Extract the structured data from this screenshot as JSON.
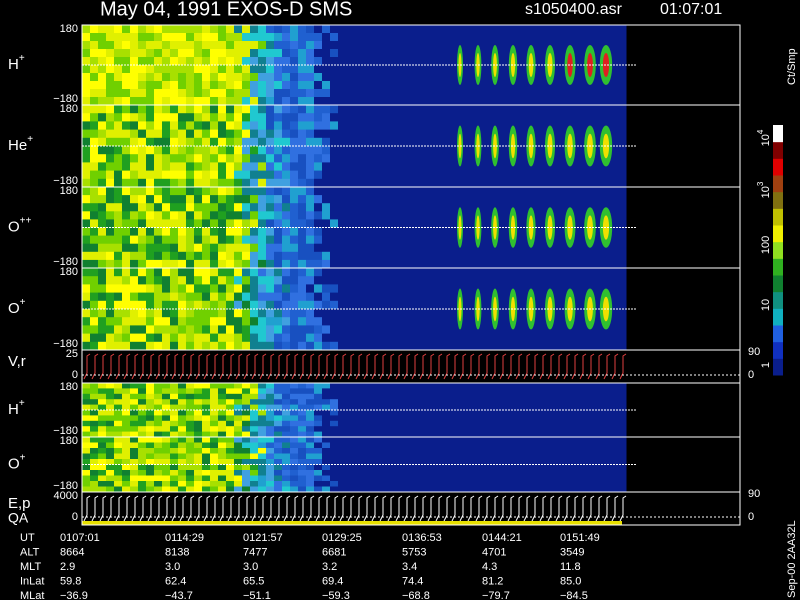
{
  "header": {
    "title": "May 04, 1991   EXOS-D SMS",
    "file": "s1050400.asr",
    "time": "01:07:01"
  },
  "panels": [
    {
      "label": "H",
      "sup": "+",
      "top": "180",
      "bottom": "−180"
    },
    {
      "label": "He",
      "sup": "+",
      "top": "180",
      "bottom": "−180"
    },
    {
      "label": "O",
      "sup": "++",
      "top": "180",
      "bottom": "−180"
    },
    {
      "label": "O",
      "sup": "+",
      "top": "180",
      "bottom": "−180"
    },
    {
      "label": "V,r",
      "top": "25",
      "bottom": "0",
      "right_top": "90",
      "right_bottom": "0"
    },
    {
      "label": "H",
      "sup": "+",
      "top": "180",
      "bottom": "−180"
    },
    {
      "label": "O",
      "sup": "+",
      "top": "180",
      "bottom": "−180"
    },
    {
      "label": "E,p",
      "sub": "QA",
      "top": "4000",
      "bottom": "0",
      "right_top": "90",
      "right_bottom": "0"
    }
  ],
  "colorbar": {
    "unit": "Ct/Smp",
    "ticks": [
      {
        "base": "10",
        "exp": "4"
      },
      {
        "base": "10",
        "exp": "3"
      },
      {
        "base": "100"
      },
      {
        "base": "10"
      },
      {
        "base": "1"
      }
    ]
  },
  "table": {
    "rows": [
      [
        "UT",
        "0107:01",
        "0114:29",
        "0121:57",
        "0129:25",
        "0136:53",
        "0144:21",
        "0151:49"
      ],
      [
        "ALT",
        "8664",
        "8138",
        "7477",
        "6681",
        "5753",
        "4701",
        "3549"
      ],
      [
        "MLT",
        "2.9",
        "3.0",
        "3.0",
        "3.2",
        "3.4",
        "4.3",
        "11.8"
      ],
      [
        "InLat",
        "59.8",
        "62.4",
        "65.5",
        "69.4",
        "74.4",
        "81.2",
        "85.0"
      ],
      [
        "MLat",
        "−36.9",
        "−43.7",
        "−51.1",
        "−59.3",
        "−68.8",
        "−79.7",
        "−84.5"
      ]
    ]
  },
  "footer": "Sep-00 2AA32L"
}
